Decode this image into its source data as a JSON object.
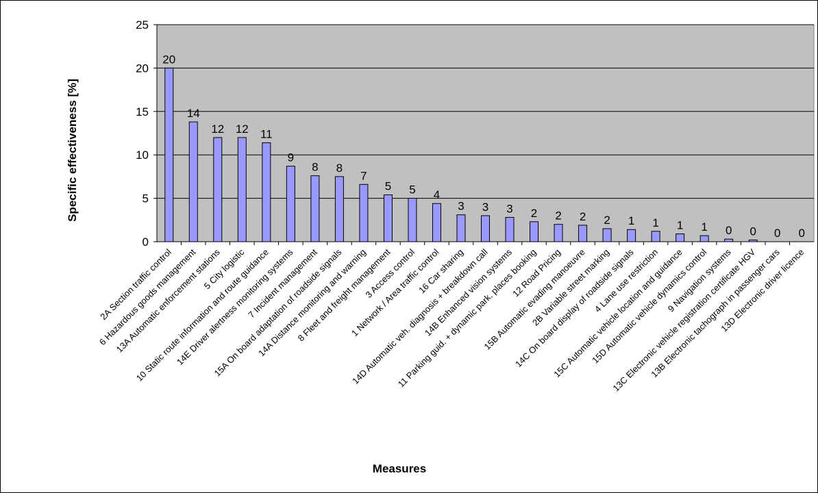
{
  "chart_data": {
    "type": "bar",
    "xlabel": "Measures",
    "ylabel": "Specific effectiveness  [%]",
    "ylim": [
      0,
      25
    ],
    "yticks": [
      0,
      5,
      10,
      15,
      20,
      25
    ],
    "grid": true,
    "categories": [
      "2A   Section traffic control",
      "6     Hazardous goods management",
      "13A Automatic enforcement stations",
      "5     City logistic",
      "10   Static route information and route guidance",
      "14E Driver alertness monitoring systems",
      "7     Incident management",
      "15A On board adaptation of roadside signals",
      "14A Distance monitoring and warning",
      "8     Fleet and freight management",
      "3     Access control",
      "1     Network / Area traffic control",
      "16   Car sharing",
      "14D Automatic veh. diagnosis + breakdown call",
      "14B Enhanced vision systems",
      "11   Parking guid. + dynamic park. places booking",
      "12   Road Pricing",
      "15B Automatic evading manoeuvre",
      "2B   Variable street marking",
      "14C On board display of roadside signals",
      "4     Lane use restriction",
      "15C Automatic vehicle location and guidance",
      "15D Automatic vehicle dynamics control",
      "9     Navigation systems",
      "13C Electronic vehicle registration certificate HGV",
      "13B Electronic tachograph in passenger cars",
      "13D Electronic driver licence"
    ],
    "values": [
      20,
      13.8,
      12,
      12,
      11.4,
      8.7,
      7.6,
      7.5,
      6.6,
      5.4,
      5.0,
      4.4,
      3.1,
      3.0,
      2.8,
      2.3,
      2.0,
      1.9,
      1.5,
      1.4,
      1.2,
      0.9,
      0.7,
      0.3,
      0.2,
      0,
      0
    ],
    "data_labels": [
      "20",
      "14",
      "12",
      "12",
      "11",
      "9",
      "8",
      "8",
      "7",
      "5",
      "5",
      "4",
      "3",
      "3",
      "3",
      "2",
      "2",
      "2",
      "2",
      "1",
      "1",
      "1",
      "1",
      "0",
      "0",
      "0",
      "0"
    ],
    "colors": {
      "plot_bg": "#c0c0c0",
      "bar_fill": "#9999ff",
      "bar_stroke": "#000000"
    }
  }
}
